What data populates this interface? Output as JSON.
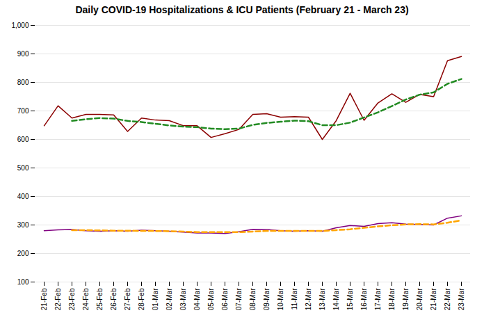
{
  "chart_data": {
    "type": "line",
    "title": "Daily COVID-19 Hospitalizations & ICU Patients (February 21 - March 23)",
    "categories": [
      "21-Feb",
      "22-Feb",
      "23-Feb",
      "24-Feb",
      "25-Feb",
      "26-Feb",
      "27-Feb",
      "28-Feb",
      "01-Mar",
      "02-Mar",
      "03-Mar",
      "04-Mar",
      "05-Mar",
      "06-Mar",
      "07-Mar",
      "08-Mar",
      "09-Mar",
      "10-Mar",
      "11-Mar",
      "12-Mar",
      "13-Mar",
      "14-Mar",
      "15-Mar",
      "16-Mar",
      "17-Mar",
      "18-Mar",
      "19-Mar",
      "20-Mar",
      "21-Mar",
      "22-Mar",
      "23-Mar"
    ],
    "series": [
      {
        "color": "#8B0000",
        "line_style": "solid",
        "values": [
          648,
          718,
          675,
          688,
          688,
          686,
          628,
          675,
          668,
          666,
          648,
          648,
          607,
          620,
          635,
          688,
          690,
          678,
          680,
          678,
          600,
          666,
          762,
          667,
          728,
          760,
          730,
          758,
          750,
          876,
          891
        ]
      },
      {
        "color": "#228B22",
        "line_style": "dashed",
        "values": [
          null,
          null,
          665,
          671,
          675,
          673,
          665,
          661,
          655,
          649,
          645,
          643,
          638,
          636,
          638,
          651,
          658,
          662,
          666,
          664,
          650,
          650,
          659,
          677,
          695,
          717,
          740,
          757,
          765,
          795,
          812
        ]
      },
      {
        "color": "#800080",
        "line_style": "solid",
        "values": [
          280,
          283,
          284,
          280,
          278,
          280,
          278,
          282,
          280,
          278,
          275,
          272,
          272,
          270,
          276,
          285,
          284,
          280,
          278,
          280,
          278,
          290,
          298,
          295,
          305,
          308,
          303,
          302,
          300,
          324,
          332
        ]
      },
      {
        "color": "#FFA500",
        "line_style": "dashed",
        "values": [
          null,
          null,
          282,
          282,
          281,
          280,
          280,
          279,
          279,
          278,
          277,
          275,
          275,
          275,
          275,
          277,
          279,
          279,
          279,
          279,
          279,
          282,
          285,
          290,
          295,
          299,
          302,
          303,
          302,
          308,
          316
        ]
      }
    ],
    "ylim": [
      100,
      1000
    ],
    "yticks": [
      100,
      200,
      300,
      400,
      500,
      600,
      700,
      800,
      900,
      1000
    ],
    "grid": true
  }
}
